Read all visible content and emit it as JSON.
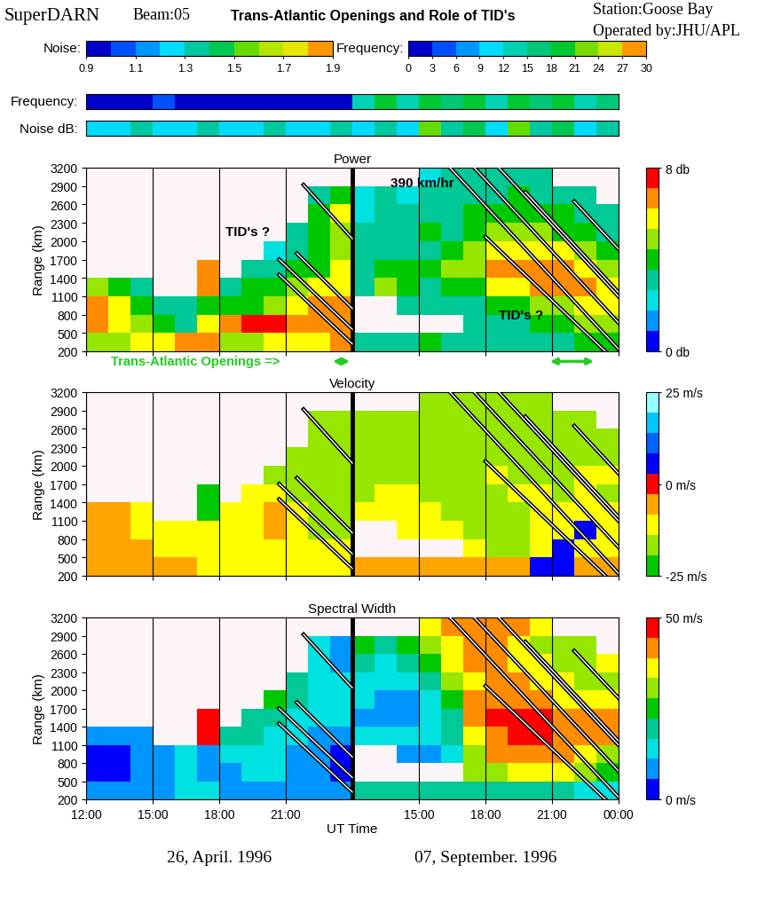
{
  "header": {
    "left": "SuperDARN",
    "beam": "Beam:05",
    "title": "Trans-Atlantic Openings and Role of TID's",
    "station": "Station:Goose Bay",
    "operator": "Operated by:JHU/APL"
  },
  "colorbars": [
    {
      "label": "Noise:",
      "range": [
        0.9,
        1.9
      ],
      "ticks": [
        0.9,
        1.1,
        1.3,
        1.5,
        1.7,
        1.9
      ],
      "colors": [
        "#0000c8",
        "#0050ff",
        "#0096ff",
        "#00dcff",
        "#00c8a0",
        "#00c850",
        "#64dc00",
        "#b4e600",
        "#e6e600",
        "#ff9600"
      ],
      "strip": {
        "label": "Noise dB:",
        "values": [
          1.25,
          1.25,
          1.3,
          1.25,
          1.25,
          1.3,
          1.25,
          1.25,
          1.3,
          1.25,
          1.25,
          1.3,
          1.2,
          1.4,
          1.25,
          1.5,
          1.3,
          1.45,
          1.2,
          1.5,
          1.35,
          1.45,
          1.25,
          1.4
        ]
      }
    },
    {
      "label": "Frequency:",
      "range": [
        0,
        30
      ],
      "ticks": [
        0,
        3,
        6,
        9,
        12,
        15,
        18,
        21,
        24,
        27,
        30
      ],
      "colors": [
        "#0000c8",
        "#0050ff",
        "#0096ff",
        "#00dcff",
        "#00d2b4",
        "#00c878",
        "#00c832",
        "#78dc00",
        "#c8e600",
        "#ff9600"
      ],
      "strip": {
        "label": "Frequency:",
        "values": [
          1.5,
          1.5,
          1.5,
          4.5,
          1.5,
          1.5,
          1.5,
          1.5,
          1.5,
          1.5,
          1.5,
          1.5,
          13.5,
          19.5,
          13.5,
          19.5,
          16.5,
          19.5,
          13.5,
          19.5,
          16.5,
          19.5,
          13.5,
          16.5
        ]
      }
    }
  ],
  "x_bins": [
    0,
    1,
    2,
    3,
    4,
    5,
    6,
    7,
    8,
    9,
    10,
    11,
    12,
    13,
    14,
    15,
    16,
    17,
    18,
    19,
    20,
    21,
    22,
    23,
    24
  ],
  "date_boundary": 12,
  "dates": [
    "26, April. 1996",
    "07, September. 1996"
  ],
  "xlabel": "UT Time",
  "tid_lines": [
    [
      [
        9.8,
        2920
      ],
      [
        12,
        2040
      ]
    ],
    [
      [
        9.5,
        1800
      ],
      [
        12,
        900
      ]
    ],
    [
      [
        8.7,
        1700
      ],
      [
        12,
        560
      ]
    ],
    [
      [
        8.7,
        1450
      ],
      [
        12,
        320
      ]
    ],
    [
      [
        16.4,
        3200
      ],
      [
        24,
        236
      ]
    ],
    [
      [
        17.5,
        3200
      ],
      [
        24,
        665
      ]
    ],
    [
      [
        18.6,
        3200
      ],
      [
        24,
        1094
      ]
    ],
    [
      [
        19.8,
        2800
      ],
      [
        24,
        1162
      ]
    ],
    [
      [
        22.0,
        2650
      ],
      [
        24,
        1870
      ]
    ],
    [
      [
        18.0,
        2070
      ],
      [
        23.4,
        200
      ]
    ]
  ],
  "openings": {
    "label": "Trans-Atlantic Openings =>",
    "spans": [
      [
        11.0,
        12.0
      ],
      [
        20.8,
        23.0
      ]
    ]
  },
  "chart_data": [
    {
      "type": "heatmap",
      "title": "Power",
      "ylabel": "Range (km)",
      "xlim": [
        0,
        24
      ],
      "xticks": [
        {
          "value": 0,
          "label": "12:00"
        },
        {
          "value": 3,
          "label": "15:00"
        },
        {
          "value": 6,
          "label": "18:00"
        },
        {
          "value": 9,
          "label": "21:00"
        },
        {
          "value": 15,
          "label": "15:00"
        },
        {
          "value": 18,
          "label": "18:00"
        },
        {
          "value": 21,
          "label": "21:00"
        },
        {
          "value": 24,
          "label": "00:00"
        }
      ],
      "ylim": [
        200,
        3200
      ],
      "yticks": [
        200,
        500,
        800,
        1100,
        1400,
        1700,
        2000,
        2300,
        2600,
        2900,
        3200
      ],
      "range_bins": [
        200,
        500,
        800,
        1100,
        1400,
        1700,
        2000,
        2300,
        2600,
        2900,
        3200
      ],
      "grid": true,
      "tick_labels": "y",
      "colors": [
        "#0000ff",
        "#0096ff",
        "#00e1e1",
        "#00c896",
        "#00c800",
        "#96e600",
        "#ffff00",
        "#ff8c00",
        "#ff0000"
      ],
      "color_range": [
        0,
        8
      ],
      "color_ticks": [
        {
          "value": 8,
          "label": "8 db"
        },
        {
          "value": 0,
          "label": "0 db"
        }
      ],
      "annotations": [
        {
          "text": "TID's ?",
          "x": 6.3,
          "y": 2150
        },
        {
          "text": "TID's ?",
          "x": 18.6,
          "y": 800
        },
        {
          "text": "390 km/hr",
          "x": 13.7,
          "y": 2950
        }
      ],
      "cells": [
        [
          5,
          5,
          6,
          6,
          7,
          7,
          5,
          5,
          6,
          6,
          6,
          7,
          3,
          3,
          3,
          4,
          3,
          3,
          3,
          3,
          3,
          3,
          4,
          4
        ],
        [
          7,
          6,
          5,
          4,
          3,
          6,
          7,
          8,
          8,
          7,
          7,
          7,
          null,
          null,
          null,
          null,
          null,
          3,
          3,
          3,
          4,
          4,
          5,
          5
        ],
        [
          7,
          6,
          4,
          3,
          3,
          4,
          4,
          4,
          5,
          6,
          7,
          7,
          null,
          null,
          3,
          3,
          3,
          3,
          4,
          4,
          5,
          5,
          6,
          6
        ],
        [
          5,
          4,
          3,
          null,
          null,
          7,
          3,
          4,
          4,
          5,
          6,
          6,
          3,
          5,
          4,
          3,
          4,
          4,
          6,
          6,
          7,
          7,
          7,
          6
        ],
        [
          null,
          null,
          null,
          null,
          null,
          7,
          null,
          3,
          3,
          4,
          4,
          6,
          3,
          4,
          4,
          4,
          5,
          5,
          7,
          7,
          7,
          7,
          6,
          5
        ],
        [
          null,
          null,
          null,
          null,
          null,
          null,
          null,
          null,
          2,
          3,
          4,
          5,
          3,
          3,
          3,
          3,
          4,
          5,
          6,
          6,
          6,
          6,
          5,
          4
        ],
        [
          null,
          null,
          null,
          null,
          null,
          null,
          null,
          null,
          null,
          3,
          4,
          5,
          3,
          3,
          3,
          4,
          3,
          4,
          5,
          5,
          5,
          4,
          4,
          3
        ],
        [
          null,
          null,
          null,
          null,
          null,
          null,
          null,
          null,
          null,
          null,
          4,
          6,
          2,
          3,
          3,
          3,
          3,
          4,
          4,
          4,
          4,
          4,
          3,
          3
        ],
        [
          null,
          null,
          null,
          null,
          null,
          null,
          null,
          null,
          null,
          null,
          3,
          4,
          2,
          3,
          2,
          3,
          3,
          3,
          3,
          4,
          3,
          3,
          3,
          null
        ],
        [
          null,
          null,
          null,
          null,
          null,
          null,
          null,
          null,
          null,
          null,
          null,
          null,
          null,
          null,
          null,
          2,
          3,
          3,
          3,
          3,
          3,
          null,
          null,
          null
        ]
      ]
    },
    {
      "type": "heatmap",
      "title": "Velocity",
      "ylabel": "Range (km)",
      "xlim": [
        0,
        24
      ],
      "xticks": [
        {
          "value": 0,
          "label": "12:00"
        },
        {
          "value": 3,
          "label": "15:00"
        },
        {
          "value": 6,
          "label": "18:00"
        },
        {
          "value": 9,
          "label": "21:00"
        },
        {
          "value": 15,
          "label": "15:00"
        },
        {
          "value": 18,
          "label": "18:00"
        },
        {
          "value": 21,
          "label": "21:00"
        },
        {
          "value": 24,
          "label": "00:00"
        }
      ],
      "ylim": [
        200,
        3200
      ],
      "yticks": [
        200,
        500,
        800,
        1100,
        1400,
        1700,
        2000,
        2300,
        2600,
        2900,
        3200
      ],
      "range_bins": [
        200,
        500,
        800,
        1100,
        1400,
        1700,
        2000,
        2300,
        2600,
        2900,
        3200
      ],
      "grid": true,
      "tick_labels": "y",
      "colors": [
        "#00c800",
        "#96e600",
        "#ffff00",
        "#ffa500",
        "#ff0000",
        "#0000ff",
        "#0064ff",
        "#00c8ff",
        "#96ffff"
      ],
      "color_range": [
        -25,
        25
      ],
      "color_ticks": [
        {
          "value": 25,
          "label": "25 m/s"
        },
        {
          "value": 0,
          "label": "0 m/s"
        },
        {
          "value": -25,
          "label": "-25 m/s"
        }
      ],
      "annotations": [],
      "cells": [
        [
          -8,
          -8,
          -8,
          -8,
          -8,
          -10,
          -10,
          -12,
          -10,
          -10,
          -12,
          -10,
          -5,
          -5,
          -5,
          -5,
          -5,
          -5,
          -5,
          -5,
          5,
          5,
          -5,
          -5
        ],
        [
          -8,
          -8,
          -8,
          -9,
          -10,
          -10,
          -9,
          -10,
          -9,
          -10,
          -12,
          -12,
          null,
          null,
          null,
          null,
          null,
          -12,
          -14,
          -14,
          -12,
          8,
          -12,
          -12
        ],
        [
          -8,
          -8,
          -9,
          -10,
          -12,
          -9,
          -12,
          -10,
          -8,
          -10,
          -14,
          -14,
          null,
          null,
          -12,
          -10,
          -12,
          -14,
          -16,
          -14,
          -12,
          -10,
          5,
          -12
        ],
        [
          -8,
          -8,
          -10,
          null,
          null,
          -20,
          -12,
          -9,
          -8,
          -12,
          -16,
          -16,
          -12,
          -10,
          -12,
          -12,
          -14,
          -16,
          -16,
          -14,
          -12,
          -12,
          -10,
          -12
        ],
        [
          null,
          null,
          null,
          null,
          null,
          -22,
          null,
          -12,
          -10,
          -14,
          -16,
          -18,
          -14,
          -12,
          -12,
          -14,
          -14,
          -16,
          -14,
          -12,
          -12,
          -14,
          -12,
          -14
        ],
        [
          null,
          null,
          null,
          null,
          null,
          null,
          null,
          null,
          -14,
          -16,
          -16,
          -18,
          -16,
          -14,
          -14,
          -16,
          -16,
          -14,
          -12,
          -14,
          -16,
          -14,
          -12,
          -12
        ],
        [
          null,
          null,
          null,
          null,
          null,
          null,
          null,
          null,
          null,
          -16,
          -18,
          -16,
          -16,
          -14,
          -14,
          -16,
          -16,
          -14,
          -14,
          -16,
          -16,
          -14,
          -16,
          -14
        ],
        [
          null,
          null,
          null,
          null,
          null,
          null,
          null,
          null,
          null,
          null,
          -18,
          -18,
          -14,
          -16,
          -14,
          -14,
          -16,
          -16,
          -16,
          -14,
          -14,
          -16,
          -14,
          -16
        ],
        [
          null,
          null,
          null,
          null,
          null,
          null,
          null,
          null,
          null,
          null,
          -16,
          -16,
          -14,
          -14,
          -16,
          -14,
          -16,
          -14,
          -16,
          -14,
          -16,
          -14,
          -16,
          null
        ],
        [
          null,
          null,
          null,
          null,
          null,
          null,
          null,
          null,
          null,
          null,
          null,
          null,
          null,
          null,
          null,
          -14,
          -16,
          -14,
          -16,
          -16,
          -14,
          null,
          null,
          null
        ]
      ]
    },
    {
      "type": "heatmap",
      "title": "Spectral Width",
      "ylabel": "Range (km)",
      "xlim": [
        0,
        24
      ],
      "xticks": [
        {
          "value": 0,
          "label": "12:00"
        },
        {
          "value": 3,
          "label": "15:00"
        },
        {
          "value": 6,
          "label": "18:00"
        },
        {
          "value": 9,
          "label": "21:00"
        },
        {
          "value": 15,
          "label": "15:00"
        },
        {
          "value": 18,
          "label": "18:00"
        },
        {
          "value": 21,
          "label": "21:00"
        },
        {
          "value": 24,
          "label": "00:00"
        }
      ],
      "ylim": [
        200,
        3200
      ],
      "yticks": [
        200,
        500,
        800,
        1100,
        1400,
        1700,
        2000,
        2300,
        2600,
        2900,
        3200
      ],
      "range_bins": [
        200,
        500,
        800,
        1100,
        1400,
        1700,
        2000,
        2300,
        2600,
        2900,
        3200
      ],
      "grid": true,
      "colors": [
        "#0000ff",
        "#0096ff",
        "#00e1e1",
        "#00c896",
        "#00c800",
        "#96e600",
        "#ffff00",
        "#ff8c00",
        "#ff0000"
      ],
      "color_range": [
        0,
        50
      ],
      "color_ticks": [
        {
          "value": 50,
          "label": "50 m/s"
        },
        {
          "value": 0,
          "label": "0 m/s"
        }
      ],
      "annotations": [],
      "cells": [
        [
          10,
          8,
          8,
          10,
          12,
          12,
          8,
          8,
          10,
          10,
          8,
          8,
          20,
          20,
          20,
          20,
          20,
          20,
          20,
          20,
          20,
          20,
          15,
          15
        ],
        [
          5,
          5,
          8,
          10,
          15,
          10,
          10,
          12,
          12,
          10,
          8,
          5,
          null,
          null,
          null,
          null,
          null,
          30,
          30,
          35,
          35,
          35,
          30,
          25
        ],
        [
          5,
          5,
          8,
          10,
          12,
          10,
          15,
          15,
          12,
          10,
          8,
          5,
          null,
          null,
          10,
          10,
          15,
          30,
          40,
          40,
          40,
          40,
          35,
          30
        ],
        [
          8,
          10,
          10,
          null,
          null,
          45,
          20,
          20,
          15,
          12,
          10,
          10,
          15,
          12,
          12,
          15,
          20,
          35,
          40,
          45,
          45,
          40,
          40,
          40
        ],
        [
          null,
          null,
          null,
          null,
          null,
          45,
          null,
          20,
          20,
          15,
          15,
          12,
          10,
          10,
          10,
          12,
          20,
          40,
          45,
          45,
          45,
          40,
          40,
          40
        ],
        [
          null,
          null,
          null,
          null,
          null,
          null,
          null,
          null,
          25,
          20,
          15,
          15,
          12,
          10,
          10,
          15,
          25,
          40,
          40,
          40,
          40,
          35,
          35,
          35
        ],
        [
          null,
          null,
          null,
          null,
          null,
          null,
          null,
          null,
          null,
          20,
          15,
          15,
          15,
          12,
          15,
          20,
          30,
          35,
          40,
          40,
          35,
          35,
          30,
          30
        ],
        [
          null,
          null,
          null,
          null,
          null,
          null,
          null,
          null,
          null,
          null,
          12,
          8,
          20,
          15,
          20,
          25,
          35,
          40,
          40,
          35,
          35,
          30,
          30,
          35
        ],
        [
          null,
          null,
          null,
          null,
          null,
          null,
          null,
          null,
          null,
          null,
          15,
          10,
          25,
          20,
          25,
          30,
          35,
          40,
          40,
          35,
          30,
          30,
          30,
          null
        ],
        [
          null,
          null,
          null,
          null,
          null,
          null,
          null,
          null,
          null,
          null,
          null,
          null,
          null,
          null,
          null,
          35,
          40,
          40,
          40,
          40,
          35,
          null,
          null,
          null
        ]
      ]
    }
  ]
}
